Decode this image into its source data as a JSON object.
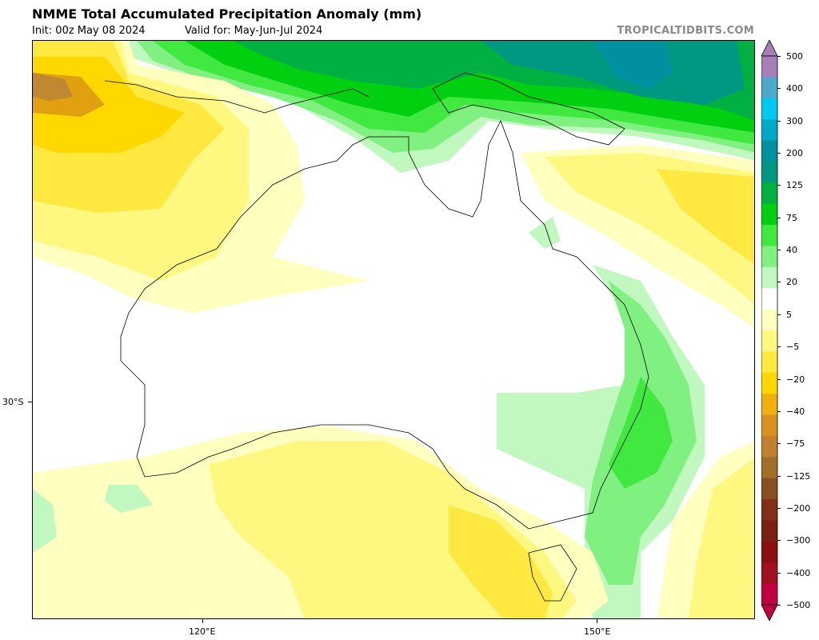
{
  "header": {
    "title": "NMME Total Accumulated Precipitation Anomaly (mm)",
    "init": "Init: 00z May 08 2024",
    "valid": "Valid for: May-Jun-Jul 2024",
    "brand": "TROPICALTIDBITS.COM"
  },
  "axes": {
    "lat_labels": [
      "30°S"
    ],
    "lon_labels": [
      "120°E",
      "150°E"
    ]
  },
  "colorbar": {
    "labels": [
      "500",
      "400",
      "300",
      "200",
      "125",
      "75",
      "40",
      "20",
      "5",
      "−5",
      "−20",
      "−40",
      "−75",
      "−125",
      "−200",
      "−300",
      "−400",
      "−500"
    ],
    "colors": [
      "#a57fb5",
      "#4aa9cc",
      "#00c8f0",
      "#00a9c8",
      "#0090a0",
      "#009880",
      "#00b040",
      "#00d010",
      "#40e840",
      "#80f080",
      "#c0f8c0",
      "#ffffff",
      "#ffffc0",
      "#fff880",
      "#ffe840",
      "#ffd800",
      "#f0b010",
      "#d89020",
      "#c08030",
      "#a07028",
      "#885020",
      "#803018",
      "#7a2010",
      "#8a1010",
      "#a01020",
      "#c00040"
    ]
  },
  "legend_colors": {
    "white": "#ffffff",
    "light_yellow": "#ffffc0",
    "yellow": "#fff880",
    "gold": "#ffe840",
    "dark_gold": "#ffd800",
    "orange": "#e0a010",
    "brown": "#c08830",
    "light_green": "#c0f8c0",
    "green": "#80f080",
    "mid_green": "#40e840",
    "bright_green": "#00d010",
    "dark_green": "#00b040",
    "teal": "#009880",
    "deep_teal": "#0090a0"
  }
}
